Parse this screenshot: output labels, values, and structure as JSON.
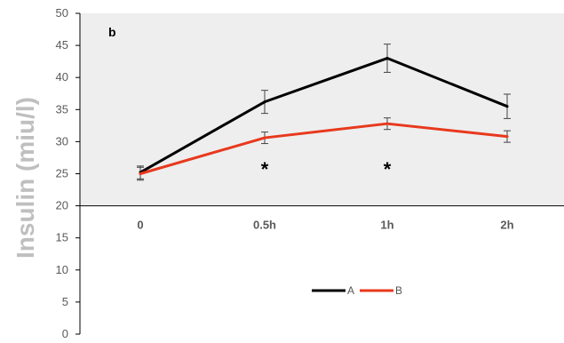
{
  "chart_data": {
    "type": "line",
    "panel_label": "b",
    "ylabel": "Insulin  (miu/l)",
    "xlabel": "",
    "categories": [
      "0",
      "0.5h",
      "1h",
      "2h"
    ],
    "ylim": [
      0,
      50
    ],
    "yticks": [
      0,
      5,
      10,
      15,
      20,
      25,
      30,
      35,
      40,
      45,
      50
    ],
    "x_axis_crosses_at": 20,
    "grid": false,
    "series": [
      {
        "name": "A",
        "color": "#000000",
        "values": [
          25.2,
          36.2,
          43.0,
          35.5
        ],
        "errors": [
          1.0,
          1.8,
          2.2,
          1.9
        ]
      },
      {
        "name": "B",
        "color": "#e8391d",
        "values": [
          25.0,
          30.6,
          32.8,
          30.8
        ],
        "errors": [
          1.0,
          0.9,
          0.9,
          0.9
        ]
      }
    ],
    "annotations": [
      {
        "text": "*",
        "category": "0.5h"
      },
      {
        "text": "*",
        "category": "1h"
      }
    ],
    "legend": {
      "position": "bottom-center",
      "entries": [
        "A",
        "B"
      ]
    }
  }
}
